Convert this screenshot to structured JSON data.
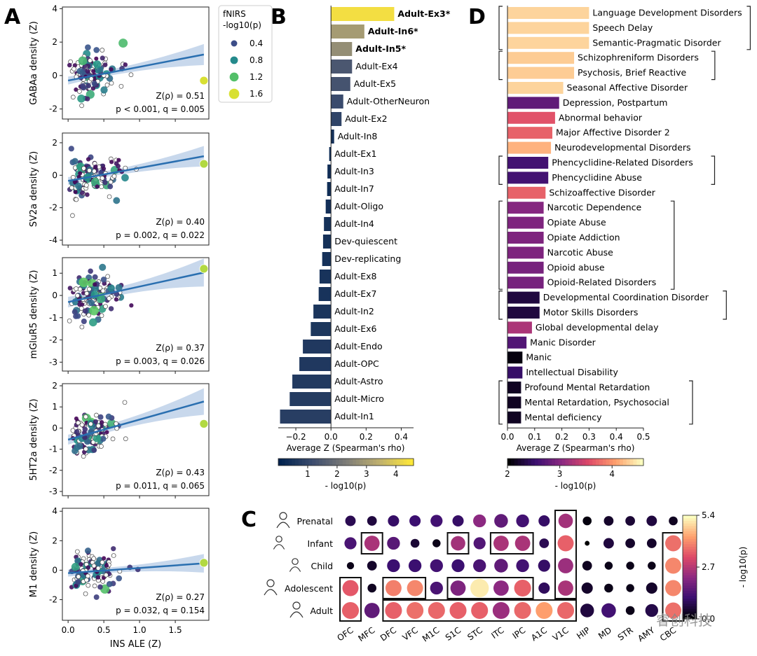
{
  "panels": {
    "A": "A",
    "B": "B",
    "C": "C",
    "D": "D"
  },
  "watermark": "睿创科技",
  "chart_data": [
    {
      "id": "A",
      "type": "scatter",
      "xlabel": "INS ALE (Z)",
      "xticks": [
        0.0,
        0.5,
        1.0,
        1.5
      ],
      "xlim": [
        -0.08,
        1.97
      ],
      "legend": {
        "title_lines": [
          "fNIRS",
          "-log10(p)"
        ],
        "entries": [
          {
            "label": "0.4",
            "value": 0.4
          },
          {
            "label": "0.8",
            "value": 0.8
          },
          {
            "label": "1.2",
            "value": 1.2
          },
          {
            "label": "1.6",
            "value": 1.6
          }
        ]
      },
      "subplots": [
        {
          "ylabel": "GABAa density (Z)",
          "ylim": [
            -2.6,
            4.1
          ],
          "yticks": [
            -2,
            0,
            2,
            4
          ],
          "fit": {
            "intercept": -0.3,
            "slope": 0.82
          },
          "stat_rho": "Z(ρ) = 0.51",
          "stat_pq": "p < 0.001, q = 0.005",
          "highlight": {
            "x": 1.9,
            "y": -0.3,
            "c": 1.6
          }
        },
        {
          "ylabel": "SV2a density (Z)",
          "ylim": [
            -4.3,
            2.6
          ],
          "yticks": [
            -4,
            -2,
            0,
            2
          ],
          "fit": {
            "intercept": -0.35,
            "slope": 0.8
          },
          "stat_rho": "Z(ρ) = 0.40",
          "stat_pq": "p = 0.002, q = 0.022",
          "highlight": {
            "x": 1.9,
            "y": 0.7,
            "c": 1.5
          }
        },
        {
          "ylabel": "mGluR5 density (Z)",
          "ylim": [
            -3.4,
            1.7
          ],
          "yticks": [
            -3,
            -2,
            -1,
            0,
            1
          ],
          "fit": {
            "intercept": -0.3,
            "slope": 0.7
          },
          "stat_rho": "Z(ρ) = 0.37",
          "stat_pq": "p = 0.003, q = 0.026",
          "highlight": {
            "x": 1.9,
            "y": 1.2,
            "c": 1.5
          }
        },
        {
          "ylabel": "5HT2a density (Z)",
          "ylim": [
            -3.2,
            2.1
          ],
          "yticks": [
            -3,
            -2,
            -1,
            0,
            1,
            2
          ],
          "fit": {
            "intercept": -0.55,
            "slope": 0.95
          },
          "stat_rho": "Z(ρ) = 0.43",
          "stat_pq": "p = 0.011, q = 0.065",
          "highlight": {
            "x": 1.9,
            "y": 0.2,
            "c": 1.5
          }
        },
        {
          "ylabel": "M1 density (Z)",
          "ylim": [
            -3.4,
            4.2
          ],
          "yticks": [
            -2,
            0,
            2,
            4
          ],
          "fit": {
            "intercept": -0.2,
            "slope": 0.35
          },
          "stat_rho": "Z(ρ) = 0.27",
          "stat_pq": "p = 0.032, q = 0.154",
          "highlight": {
            "x": 1.9,
            "y": 0.5,
            "c": 1.5
          }
        }
      ]
    },
    {
      "id": "B",
      "type": "bar",
      "orientation": "horizontal",
      "xlabel": "Average Z (Spearman's rho)",
      "xlim": [
        -0.3,
        0.47
      ],
      "xticks": [
        -0.2,
        0.0,
        0.2,
        0.4
      ],
      "colorbar": {
        "label": "- log10(p)",
        "ticks": [
          1,
          2,
          3,
          4
        ],
        "range": [
          0,
          4.6
        ],
        "colormap": "cividis"
      },
      "bars": [
        {
          "label": "Adult-Ex3*",
          "value": 0.36,
          "p": 4.4,
          "bold": true
        },
        {
          "label": "Adult-In6*",
          "value": 0.19,
          "p": 3.0,
          "bold": true
        },
        {
          "label": "Adult-In5*",
          "value": 0.12,
          "p": 2.7,
          "bold": true
        },
        {
          "label": "Adult-Ex4",
          "value": 0.12,
          "p": 1.4
        },
        {
          "label": "Adult-Ex5",
          "value": 0.11,
          "p": 1.3
        },
        {
          "label": "Adult-OtherNeuron",
          "value": 0.07,
          "p": 1.1
        },
        {
          "label": "Adult-Ex2",
          "value": 0.06,
          "p": 0.9
        },
        {
          "label": "Adult-In8",
          "value": 0.018,
          "p": 0.4
        },
        {
          "label": "Adult-Ex1",
          "value": -0.01,
          "p": 0.2
        },
        {
          "label": "Adult-In3",
          "value": -0.02,
          "p": 0.3
        },
        {
          "label": "Adult-In7",
          "value": -0.022,
          "p": 0.3
        },
        {
          "label": "Adult-Oligo",
          "value": -0.03,
          "p": 0.35
        },
        {
          "label": "Adult-In4",
          "value": -0.04,
          "p": 0.4
        },
        {
          "label": "Dev-quiescent",
          "value": -0.045,
          "p": 0.4
        },
        {
          "label": "Dev-replicating",
          "value": -0.05,
          "p": 0.4
        },
        {
          "label": "Adult-Ex8",
          "value": -0.065,
          "p": 0.45
        },
        {
          "label": "Adult-Ex7",
          "value": -0.07,
          "p": 0.45
        },
        {
          "label": "Adult-In2",
          "value": -0.1,
          "p": 0.5
        },
        {
          "label": "Adult-Ex6",
          "value": -0.115,
          "p": 0.55
        },
        {
          "label": "Adult-Endo",
          "value": -0.16,
          "p": 0.6
        },
        {
          "label": "Adult-OPC",
          "value": -0.18,
          "p": 0.6
        },
        {
          "label": "Adult-Astro",
          "value": -0.22,
          "p": 0.65
        },
        {
          "label": "Adult-Micro",
          "value": -0.235,
          "p": 0.7
        },
        {
          "label": "Adult-In1",
          "value": -0.29,
          "p": 0.75
        }
      ]
    },
    {
      "id": "C",
      "type": "heatmap",
      "colorbar": {
        "label": "- log10(p)",
        "ticks": [
          {
            "value": 0.0,
            "label": "0.0"
          },
          {
            "value": 2.7,
            "label": "2.7"
          },
          {
            "value": 5.4,
            "label": "5.4"
          }
        ],
        "range": [
          0,
          5.4
        ],
        "colormap": "magma"
      },
      "rows": [
        "Prenatal",
        "Infant",
        "Child",
        "Adolescent",
        "Adult"
      ],
      "columns": [
        "OFC",
        "MFC",
        "DFC",
        "VFC",
        "M1C",
        "S1C",
        "STC",
        "ITC",
        "IPC",
        "A1C",
        "V1C",
        "HIP",
        "MD",
        "STR",
        "AMY",
        "CBC"
      ],
      "size_scale": "dot size reflects effect magnitude",
      "values": [
        [
          0.8,
          0.6,
          1.0,
          1.1,
          1.2,
          1.0,
          2.2,
          1.6,
          1.2,
          1.0,
          2.5,
          0.1,
          0.4,
          0.5,
          0.6,
          0.3
        ],
        [
          1.3,
          2.6,
          1.5,
          0.5,
          0.2,
          2.5,
          1.4,
          2.6,
          2.6,
          0.8,
          3.6,
          0.0,
          0.6,
          0.4,
          0.4,
          3.8
        ],
        [
          0.2,
          0.4,
          1.1,
          1.1,
          1.2,
          1.1,
          1.3,
          1.6,
          1.2,
          1.0,
          2.4,
          0.3,
          0.2,
          0.2,
          0.2,
          4.1
        ],
        [
          3.5,
          0.3,
          4.0,
          4.1,
          1.3,
          2.0,
          5.3,
          2.2,
          3.6,
          0.9,
          2.6,
          0.4,
          0.2,
          0.2,
          0.4,
          4.1
        ],
        [
          3.6,
          1.6,
          3.6,
          3.8,
          3.7,
          3.6,
          3.6,
          2.4,
          3.7,
          4.4,
          3.7,
          0.6,
          1.2,
          0.2,
          0.7,
          3.8
        ]
      ],
      "sizes": [
        [
          0.65,
          0.6,
          0.7,
          0.7,
          0.75,
          0.7,
          0.8,
          0.85,
          0.8,
          0.7,
          0.9,
          0.55,
          0.6,
          0.6,
          0.65,
          0.55
        ],
        [
          0.75,
          0.95,
          0.8,
          0.55,
          0.5,
          0.9,
          0.75,
          0.95,
          0.95,
          0.6,
          1.0,
          0.3,
          0.65,
          0.6,
          0.6,
          1.0
        ],
        [
          0.45,
          0.6,
          0.8,
          0.8,
          0.8,
          0.8,
          0.8,
          0.85,
          0.8,
          0.75,
          0.95,
          0.6,
          0.5,
          0.5,
          0.5,
          1.0
        ],
        [
          1.0,
          0.55,
          1.0,
          1.0,
          0.8,
          0.95,
          1.15,
          0.95,
          1.05,
          0.7,
          0.95,
          0.7,
          0.55,
          0.5,
          0.7,
          1.0
        ],
        [
          1.05,
          0.95,
          1.05,
          1.05,
          1.05,
          1.05,
          1.05,
          1.05,
          1.05,
          1.05,
          1.05,
          0.85,
          0.9,
          0.55,
          0.8,
          1.0
        ]
      ],
      "boxes": [
        {
          "r0": 3,
          "r1": 4,
          "c0": 0,
          "c1": 0
        },
        {
          "r0": 1,
          "r1": 1,
          "c0": 1,
          "c1": 1
        },
        {
          "r0": 3,
          "r1": 3,
          "c0": 2,
          "c1": 3
        },
        {
          "r0": 4,
          "r1": 4,
          "c0": 2,
          "c1": 10
        },
        {
          "r0": 1,
          "r1": 1,
          "c0": 5,
          "c1": 5
        },
        {
          "r0": 3,
          "r1": 3,
          "c0": 5,
          "c1": 8
        },
        {
          "r0": 1,
          "r1": 1,
          "c0": 7,
          "c1": 8
        },
        {
          "r0": 0,
          "r1": 3,
          "c0": 10,
          "c1": 10
        },
        {
          "r0": 1,
          "r1": 4,
          "c0": 15,
          "c1": 15
        }
      ]
    },
    {
      "id": "D",
      "type": "bar",
      "orientation": "horizontal",
      "xlabel": "Average Z (Spearman's rho)",
      "xlim": [
        0.0,
        0.5
      ],
      "xticks": [
        0.0,
        0.1,
        0.2,
        0.3,
        0.4,
        0.5
      ],
      "colorbar": {
        "label": "- log10(p)",
        "ticks": [
          2,
          3,
          4
        ],
        "range": [
          2,
          4.6
        ],
        "colormap": "magma"
      },
      "bars": [
        {
          "label": "Language Development Disorders",
          "value": 0.3,
          "p": 4.5
        },
        {
          "label": "Speech Delay",
          "value": 0.3,
          "p": 4.5
        },
        {
          "label": "Semantic-Pragmatic Disorder",
          "value": 0.3,
          "p": 4.5
        },
        {
          "label": "Schizophreniform Disorders",
          "value": 0.245,
          "p": 4.45
        },
        {
          "label": "Psychosis, Brief Reactive",
          "value": 0.245,
          "p": 4.45
        },
        {
          "label": "Seasonal Affective Disorder",
          "value": 0.205,
          "p": 4.5
        },
        {
          "label": "Depression, Postpartum",
          "value": 0.19,
          "p": 2.8
        },
        {
          "label": "Abnormal behavior",
          "value": 0.175,
          "p": 3.7
        },
        {
          "label": "Major Affective Disorder 2",
          "value": 0.165,
          "p": 3.8
        },
        {
          "label": "Neurodevelopmental Disorders",
          "value": 0.16,
          "p": 4.3
        },
        {
          "label": "Phencyclidine-Related Disorders",
          "value": 0.15,
          "p": 2.6
        },
        {
          "label": "Phencyclidine Abuse",
          "value": 0.15,
          "p": 2.6
        },
        {
          "label": "Schizoaffective Disorder",
          "value": 0.14,
          "p": 3.8
        },
        {
          "label": "Narcotic Dependence",
          "value": 0.133,
          "p": 3.05
        },
        {
          "label": "Opiate Abuse",
          "value": 0.133,
          "p": 3.0
        },
        {
          "label": "Opiate Addiction",
          "value": 0.133,
          "p": 3.0
        },
        {
          "label": "Narcotic Abuse",
          "value": 0.133,
          "p": 3.0
        },
        {
          "label": "Opioid abuse",
          "value": 0.133,
          "p": 2.95
        },
        {
          "label": "Opioid-Related Disorders",
          "value": 0.133,
          "p": 2.95
        },
        {
          "label": "Developmental Coordination Disorder",
          "value": 0.118,
          "p": 2.3
        },
        {
          "label": "Motor Skills Disorders",
          "value": 0.118,
          "p": 2.3
        },
        {
          "label": "Global developmental delay",
          "value": 0.09,
          "p": 3.3
        },
        {
          "label": "Manic Disorder",
          "value": 0.07,
          "p": 2.7
        },
        {
          "label": "Manic",
          "value": 0.055,
          "p": 2.05
        },
        {
          "label": "Intellectual Disability",
          "value": 0.055,
          "p": 2.5
        },
        {
          "label": "Profound Mental Retardation",
          "value": 0.05,
          "p": 2.15
        },
        {
          "label": "Mental Retardation, Psychosocial",
          "value": 0.05,
          "p": 2.15
        },
        {
          "label": "Mental deficiency",
          "value": 0.05,
          "p": 2.15
        }
      ],
      "brackets": [
        {
          "start": 0,
          "end": 2,
          "side": "both"
        },
        {
          "start": 3,
          "end": 4,
          "side": "both"
        },
        {
          "start": 10,
          "end": 11,
          "side": "both"
        },
        {
          "start": 13,
          "end": 18,
          "side": "both"
        },
        {
          "start": 19,
          "end": 20,
          "side": "both"
        },
        {
          "start": 25,
          "end": 27,
          "side": "both"
        }
      ]
    }
  ]
}
